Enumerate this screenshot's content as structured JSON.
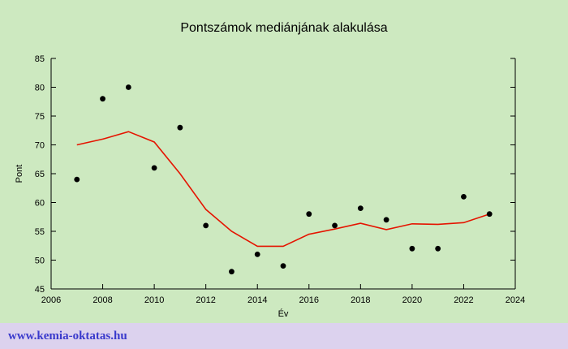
{
  "title": "Pontszámok mediánjának alakulása",
  "footer": {
    "url_label": "www.kemia-oktatas.hu"
  },
  "colors": {
    "page_background": "#cde9c0",
    "footer_background": "#dcd2ee",
    "url_text": "#3a3acc",
    "axis": "#000000",
    "point": "#000000",
    "trend_line": "#e51400"
  },
  "chart_data": {
    "type": "scatter",
    "title": "Pontszámok mediánjának alakulása",
    "xlabel": "Év",
    "ylabel": "Pont",
    "xlim": [
      2006,
      2024
    ],
    "ylim": [
      45,
      85
    ],
    "xticks": [
      2006,
      2008,
      2010,
      2012,
      2014,
      2016,
      2018,
      2020,
      2022,
      2024
    ],
    "yticks": [
      45,
      50,
      55,
      60,
      65,
      70,
      75,
      80,
      85
    ],
    "grid": false,
    "legend": false,
    "series": [
      {
        "name": "median-points",
        "type": "scatter",
        "x": [
          2007,
          2008,
          2009,
          2010,
          2011,
          2012,
          2013,
          2014,
          2015,
          2016,
          2017,
          2018,
          2019,
          2020,
          2021,
          2022,
          2023
        ],
        "y": [
          64,
          78,
          80,
          66,
          73,
          56,
          48,
          51,
          49,
          58,
          56,
          59,
          57,
          52,
          52,
          61,
          58
        ]
      },
      {
        "name": "trend",
        "type": "line",
        "x": [
          2007,
          2008,
          2009,
          2010,
          2011,
          2012,
          2013,
          2014,
          2015,
          2016,
          2017,
          2018,
          2019,
          2020,
          2021,
          2022,
          2023
        ],
        "y": [
          70,
          71,
          72.3,
          70.5,
          65,
          58.8,
          55,
          52.4,
          52.4,
          54.5,
          55.4,
          56.4,
          55.3,
          56.3,
          56.2,
          56.5,
          58
        ]
      }
    ]
  }
}
